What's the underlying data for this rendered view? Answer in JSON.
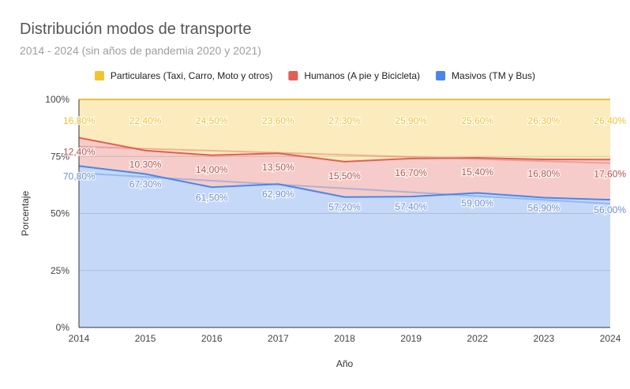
{
  "chart_data": {
    "type": "area",
    "title": "Distribución modos de transporte",
    "subtitle": "2014 - 2024 (sin años de pandemia 2020 y 2021)",
    "xlabel": "Año",
    "ylabel": "Porcentaje",
    "categories": [
      "2014",
      "2015",
      "2016",
      "2017",
      "2018",
      "2019",
      "2022",
      "2023",
      "2024"
    ],
    "ylim": [
      0,
      100
    ],
    "yticks": [
      "0%",
      "25%",
      "50%",
      "75%",
      "100%"
    ],
    "stacked": true,
    "legend_position": "top",
    "grid": true,
    "trendlines": true,
    "series": [
      {
        "name": "Masivos (TM y Bus)",
        "color": "#4a86e8",
        "values": [
          70.8,
          67.3,
          61.5,
          62.9,
          57.2,
          57.4,
          59.0,
          56.9,
          56.0
        ],
        "labels": [
          "70,80%",
          "67,30%",
          "61,50%",
          "62,90%",
          "57,20%",
          "57,40%",
          "59,00%",
          "56,90%",
          "56,00%"
        ]
      },
      {
        "name": "Humanos (A pie y Bicicleta)",
        "color": "#e06055",
        "values": [
          12.4,
          10.3,
          14.0,
          13.5,
          15.5,
          16.7,
          15.4,
          16.8,
          17.6
        ],
        "labels": [
          "12,40%",
          "10,30%",
          "14,00%",
          "13,50%",
          "15,50%",
          "16,70%",
          "15,40%",
          "16,80%",
          "17,60%"
        ]
      },
      {
        "name": "Particulares (Taxi, Carro, Moto y otros)",
        "color": "#f1c232",
        "values": [
          16.8,
          22.4,
          24.5,
          23.6,
          27.3,
          25.9,
          25.6,
          26.3,
          26.4
        ],
        "labels": [
          "16,80%",
          "22,40%",
          "24,50%",
          "23,60%",
          "27,30%",
          "25,90%",
          "25,60%",
          "26,30%",
          "26,40%"
        ]
      }
    ],
    "legend_order": [
      2,
      1,
      0
    ]
  }
}
